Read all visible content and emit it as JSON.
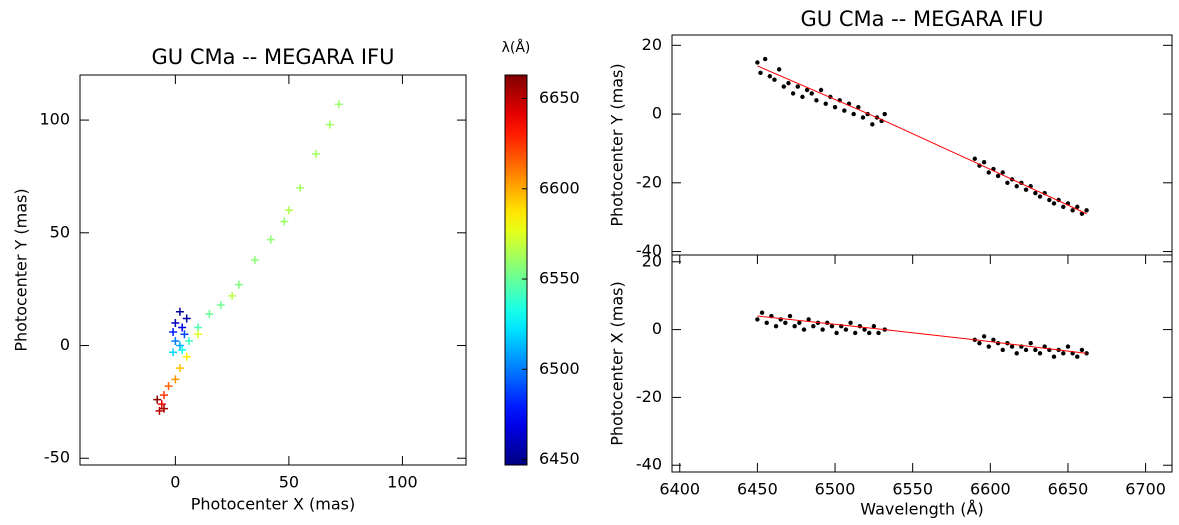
{
  "chart_data": [
    {
      "type": "scatter",
      "title": "GU CMa -- MEGARA IFU",
      "xlabel": "Photocenter X (mas)",
      "ylabel": "Photocenter Y (mas)",
      "xlim": [
        -42,
        128
      ],
      "ylim": [
        -53,
        120
      ],
      "xticks": [
        0,
        50,
        100
      ],
      "yticks": [
        -50,
        0,
        50,
        100
      ],
      "colormap": "jet",
      "colorbar": {
        "label": "λ(Å)",
        "lim": [
          6447,
          6663
        ],
        "ticks": [
          6450,
          6500,
          6550,
          6600,
          6650
        ]
      },
      "series": [
        {
          "x": [
            2,
            5,
            0,
            3,
            -1,
            4,
            0,
            2,
            -1,
            3,
            6,
            10,
            15,
            20,
            28,
            35,
            42,
            48,
            55,
            62,
            68,
            72,
            50,
            25,
            10,
            5,
            2,
            0,
            -3,
            -5,
            -6,
            -7,
            -5,
            -8
          ],
          "values": [
            15,
            12,
            10,
            8,
            6,
            5,
            2,
            0,
            -3,
            -2,
            2,
            8,
            14,
            18,
            27,
            38,
            47,
            55,
            70,
            85,
            98,
            107,
            60,
            22,
            5,
            -5,
            -10,
            -15,
            -18,
            -22,
            -26,
            -29,
            -28,
            -24
          ],
          "wavelengths": [
            6450,
            6455,
            6460,
            6470,
            6480,
            6490,
            6500,
            6510,
            6520,
            6530,
            6540,
            6545,
            6550,
            6552,
            6555,
            6557,
            6558,
            6560,
            6562,
            6562,
            6561,
            6560,
            6565,
            6568,
            6575,
            6585,
            6595,
            6605,
            6615,
            6625,
            6640,
            6650,
            6655,
            6660
          ]
        }
      ]
    },
    {
      "type": "scatter",
      "title": "GU CMa -- MEGARA IFU",
      "ylabel": "Photocenter Y (mas)",
      "xlim": [
        6395,
        6717
      ],
      "ylim": [
        -41,
        23
      ],
      "yticks": [
        -40,
        -20,
        0,
        20
      ],
      "series": [
        {
          "color": "#000000",
          "style": "points",
          "x": [
            6450,
            6452,
            6455,
            6458,
            6461,
            6464,
            6467,
            6470,
            6473,
            6476,
            6479,
            6482,
            6485,
            6488,
            6491,
            6494,
            6497,
            6500,
            6503,
            6506,
            6509,
            6512,
            6515,
            6518,
            6521,
            6524,
            6527,
            6530,
            6532,
            6590,
            6593,
            6596,
            6599,
            6602,
            6605,
            6608,
            6611,
            6614,
            6617,
            6620,
            6623,
            6626,
            6629,
            6632,
            6635,
            6638,
            6641,
            6644,
            6647,
            6650,
            6653,
            6656,
            6659,
            6662
          ],
          "values": [
            15,
            12,
            16,
            11,
            10,
            13,
            8,
            9,
            6,
            8,
            5,
            7,
            6,
            4,
            7,
            3,
            5,
            2,
            4,
            1,
            3,
            0,
            2,
            -1,
            0,
            -3,
            -1,
            -2,
            0,
            -13,
            -15,
            -14,
            -17,
            -16,
            -18,
            -17,
            -20,
            -19,
            -21,
            -20,
            -22,
            -21,
            -23,
            -24,
            -23,
            -25,
            -26,
            -25,
            -27,
            -26,
            -28,
            -27,
            -29,
            -28
          ]
        },
        {
          "color": "#ff0000",
          "style": "line",
          "x": [
            6450,
            6532,
            6590,
            6662
          ],
          "values": [
            14,
            -2,
            -14,
            -29
          ]
        }
      ]
    },
    {
      "type": "scatter",
      "xlabel": "Wavelength (Å)",
      "ylabel": "Photocenter X (mas)",
      "xlim": [
        6395,
        6717
      ],
      "ylim": [
        -42,
        22
      ],
      "xticks": [
        6400,
        6450,
        6500,
        6550,
        6600,
        6650,
        6700
      ],
      "yticks": [
        -40,
        -20,
        0,
        20
      ],
      "series": [
        {
          "color": "#000000",
          "style": "points",
          "x": [
            6450,
            6453,
            6456,
            6459,
            6462,
            6465,
            6468,
            6471,
            6474,
            6477,
            6480,
            6483,
            6486,
            6489,
            6492,
            6495,
            6498,
            6501,
            6504,
            6507,
            6510,
            6513,
            6516,
            6519,
            6522,
            6525,
            6528,
            6532,
            6590,
            6593,
            6596,
            6599,
            6602,
            6605,
            6608,
            6611,
            6614,
            6617,
            6620,
            6623,
            6626,
            6629,
            6632,
            6635,
            6638,
            6641,
            6644,
            6647,
            6650,
            6653,
            6656,
            6659,
            6662
          ],
          "values": [
            3,
            5,
            2,
            4,
            1,
            3,
            2,
            4,
            1,
            2,
            0,
            3,
            1,
            2,
            0,
            2,
            1,
            -1,
            1,
            0,
            2,
            -1,
            1,
            0,
            -1,
            1,
            -1,
            0,
            -3,
            -4,
            -2,
            -5,
            -3,
            -4,
            -6,
            -4,
            -5,
            -7,
            -5,
            -6,
            -4,
            -6,
            -7,
            -5,
            -6,
            -8,
            -6,
            -7,
            -5,
            -7,
            -8,
            -6,
            -7
          ]
        },
        {
          "color": "#ff0000",
          "style": "line",
          "x": [
            6450,
            6532,
            6590,
            6662
          ],
          "values": [
            4,
            0,
            -3,
            -7
          ]
        }
      ]
    }
  ]
}
